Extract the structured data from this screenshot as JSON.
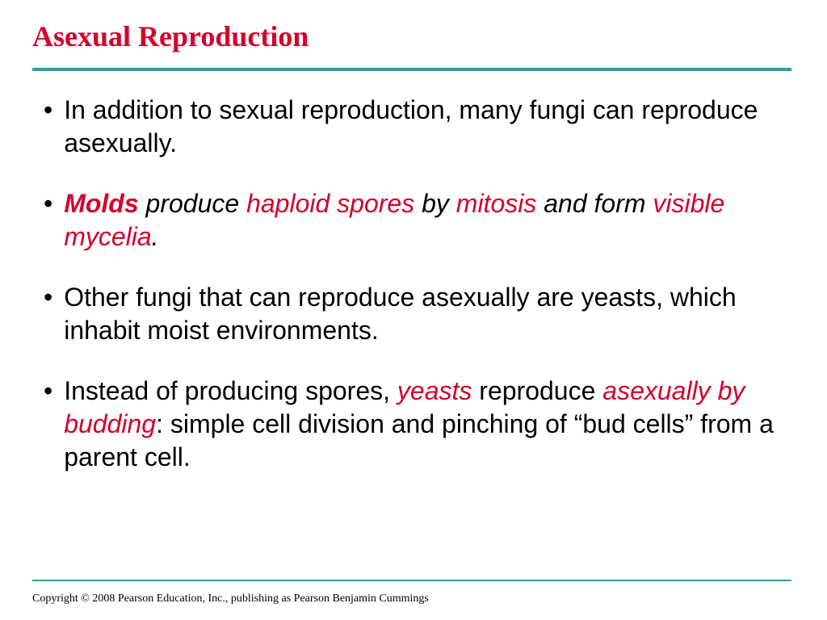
{
  "slide": {
    "title": "Asexual Reproduction",
    "title_color": "#d3002a",
    "title_fontsize": 36,
    "divider_color": "#2aa198",
    "bullets": [
      {
        "segments": [
          {
            "text": "In addition to sexual reproduction, many fungi can reproduce asexually.",
            "style": ""
          }
        ]
      },
      {
        "segments": [
          {
            "text": "Molds",
            "style": "red bold italic"
          },
          {
            "text": " produce ",
            "style": "italic"
          },
          {
            "text": "haploid spores",
            "style": "red italic"
          },
          {
            "text": " by ",
            "style": "italic"
          },
          {
            "text": "mitosis",
            "style": "red italic"
          },
          {
            "text": " and form ",
            "style": "italic"
          },
          {
            "text": "visible mycelia",
            "style": "red italic"
          },
          {
            "text": ".",
            "style": "italic"
          }
        ]
      },
      {
        "segments": [
          {
            "text": "Other fungi that can reproduce asexually are yeasts, which inhabit moist environments.",
            "style": ""
          }
        ]
      },
      {
        "segments": [
          {
            "text": "Instead of producing spores, ",
            "style": ""
          },
          {
            "text": "yeasts",
            "style": "red italic"
          },
          {
            "text": " reproduce ",
            "style": ""
          },
          {
            "text": "asexually by budding",
            "style": "red italic"
          },
          {
            "text": ":  simple cell division and pinching of “bud cells” from a parent cell.",
            "style": ""
          }
        ]
      }
    ],
    "bullet_fontsize": 32,
    "text_color": "#000000",
    "highlight_color": "#d3002a",
    "copyright": "Copyright © 2008 Pearson Education, Inc., publishing  as Pearson Benjamin Cummings",
    "background_color": "#ffffff"
  }
}
